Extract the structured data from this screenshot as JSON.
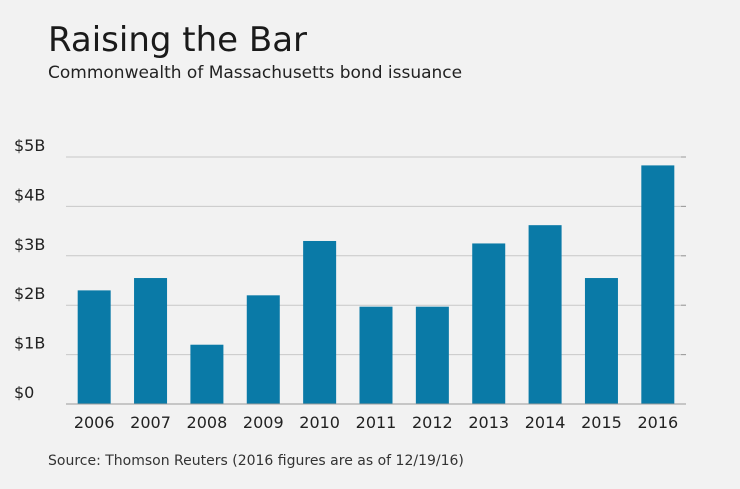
{
  "chart_data": {
    "type": "bar",
    "title": "Raising the Bar",
    "subtitle": "Commonwealth of Massachusetts bond issuance",
    "source": "Source: Thomson Reuters (2016 figures are as of 12/19/16)",
    "categories": [
      "2006",
      "2007",
      "2008",
      "2009",
      "2010",
      "2011",
      "2012",
      "2013",
      "2014",
      "2015",
      "2016"
    ],
    "values": [
      2.3,
      2.55,
      1.2,
      2.2,
      3.3,
      1.97,
      1.97,
      3.25,
      3.62,
      2.55,
      4.83
    ],
    "unit": "billion USD",
    "ylim": [
      0,
      5
    ],
    "yticks": [
      {
        "value": 0,
        "label": "$0"
      },
      {
        "value": 1,
        "label": "$1B"
      },
      {
        "value": 2,
        "label": "$2B"
      },
      {
        "value": 3,
        "label": "$3B"
      },
      {
        "value": 4,
        "label": "$4B"
      },
      {
        "value": 5,
        "label": "$5B"
      }
    ],
    "grid": true,
    "legend": "none",
    "bar_color": "#0a7aa7",
    "grid_color": "#c8c8c8",
    "axis_color": "#9a9a9a"
  }
}
